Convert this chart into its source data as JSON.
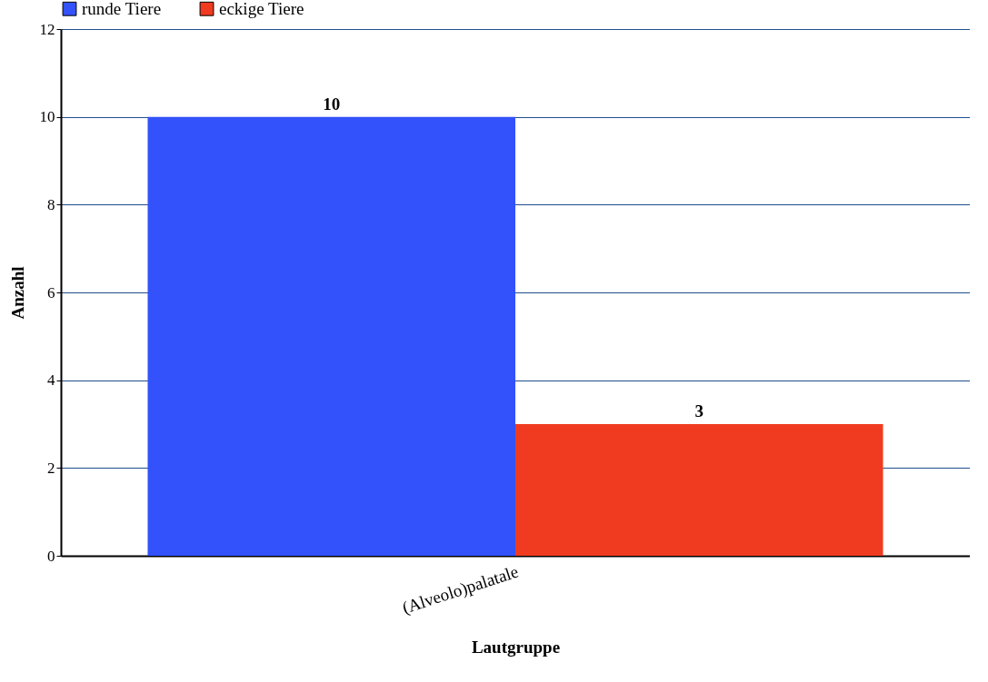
{
  "chart_data": {
    "type": "bar",
    "xlabel": "Lautgruppe",
    "ylabel": "Anzahl",
    "categories": [
      "(Alveolo)palatale"
    ],
    "series": [
      {
        "name": "runde Tiere",
        "color": "#3352fb",
        "values": [
          10
        ]
      },
      {
        "name": "eckige Tiere",
        "color": "#f03b20",
        "values": [
          3
        ]
      }
    ],
    "ylim": [
      0,
      12
    ],
    "yticks": [
      0,
      2,
      4,
      6,
      8,
      10,
      12
    ],
    "grid": "y",
    "legend": "top left",
    "data_labels": true
  }
}
